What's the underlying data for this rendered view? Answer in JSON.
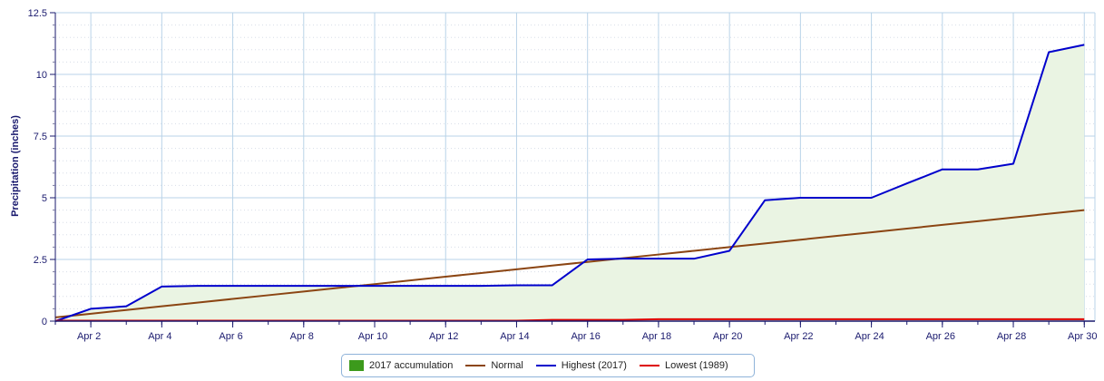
{
  "chart_data": {
    "type": "line",
    "title": "",
    "xlabel": "",
    "ylabel": "Precipitation (inches)",
    "ylim": [
      0,
      12.5
    ],
    "xlim": [
      1,
      30.3
    ],
    "x_ticks": [
      2,
      4,
      6,
      8,
      10,
      12,
      14,
      16,
      18,
      20,
      22,
      24,
      26,
      28,
      30
    ],
    "x_tick_labels": [
      "Apr 2",
      "Apr 4",
      "Apr 6",
      "Apr 8",
      "Apr 10",
      "Apr 12",
      "Apr 14",
      "Apr 16",
      "Apr 18",
      "Apr 20",
      "Apr 22",
      "Apr 24",
      "Apr 26",
      "Apr 28",
      "Apr 30"
    ],
    "y_ticks": [
      0,
      2.5,
      5,
      7.5,
      10,
      12.5
    ],
    "y_tick_labels": [
      "0",
      "2.5",
      "5",
      "7.5",
      "10",
      "12.5"
    ],
    "grid": true,
    "legend_position": "bottom-center",
    "x": [
      1,
      2,
      3,
      4,
      5,
      6,
      7,
      8,
      9,
      10,
      11,
      12,
      13,
      14,
      15,
      16,
      17,
      18,
      19,
      20,
      21,
      22,
      23,
      24,
      25,
      26,
      27,
      28,
      29,
      30
    ],
    "series": [
      {
        "name": "2017 accumulation",
        "kind": "area",
        "color": "#5fa832",
        "fill": "#eaf4e3",
        "values": [
          0.0,
          0.5,
          0.6,
          1.4,
          1.43,
          1.43,
          1.43,
          1.43,
          1.43,
          1.43,
          1.43,
          1.43,
          1.43,
          1.45,
          1.45,
          2.5,
          2.53,
          2.53,
          2.53,
          2.85,
          4.9,
          5.0,
          5.0,
          5.0,
          5.58,
          6.15,
          6.15,
          6.38,
          10.9,
          11.2
        ]
      },
      {
        "name": "Normal",
        "kind": "line",
        "color": "#8b4513",
        "values": [
          0.15,
          0.3,
          0.45,
          0.6,
          0.75,
          0.9,
          1.05,
          1.2,
          1.35,
          1.5,
          1.65,
          1.8,
          1.95,
          2.1,
          2.25,
          2.4,
          2.55,
          2.7,
          2.85,
          3.0,
          3.15,
          3.3,
          3.45,
          3.6,
          3.75,
          3.9,
          4.05,
          4.2,
          4.35,
          4.5
        ]
      },
      {
        "name": "Highest (2017)",
        "kind": "line",
        "color": "#0000cc",
        "values": [
          0.0,
          0.5,
          0.6,
          1.4,
          1.43,
          1.43,
          1.43,
          1.43,
          1.43,
          1.43,
          1.43,
          1.43,
          1.43,
          1.45,
          1.45,
          2.5,
          2.53,
          2.53,
          2.53,
          2.85,
          4.9,
          5.0,
          5.0,
          5.0,
          5.58,
          6.15,
          6.15,
          6.38,
          10.9,
          11.2
        ]
      },
      {
        "name": "Lowest (1989)",
        "kind": "line",
        "color": "#dd0000",
        "values": [
          0.02,
          0.02,
          0.02,
          0.02,
          0.02,
          0.02,
          0.02,
          0.02,
          0.02,
          0.02,
          0.02,
          0.02,
          0.02,
          0.02,
          0.05,
          0.05,
          0.05,
          0.08,
          0.08,
          0.08,
          0.08,
          0.08,
          0.08,
          0.08,
          0.08,
          0.08,
          0.08,
          0.08,
          0.08,
          0.08
        ]
      }
    ]
  },
  "legend": {
    "items": [
      {
        "label": "2017 accumulation",
        "color": "#3c9a1c",
        "style": "box"
      },
      {
        "label": "Normal",
        "color": "#8b4513",
        "style": "line"
      },
      {
        "label": "Highest (2017)",
        "color": "#0000cc",
        "style": "line"
      },
      {
        "label": "Lowest (1989)",
        "color": "#dd0000",
        "style": "line"
      }
    ]
  }
}
